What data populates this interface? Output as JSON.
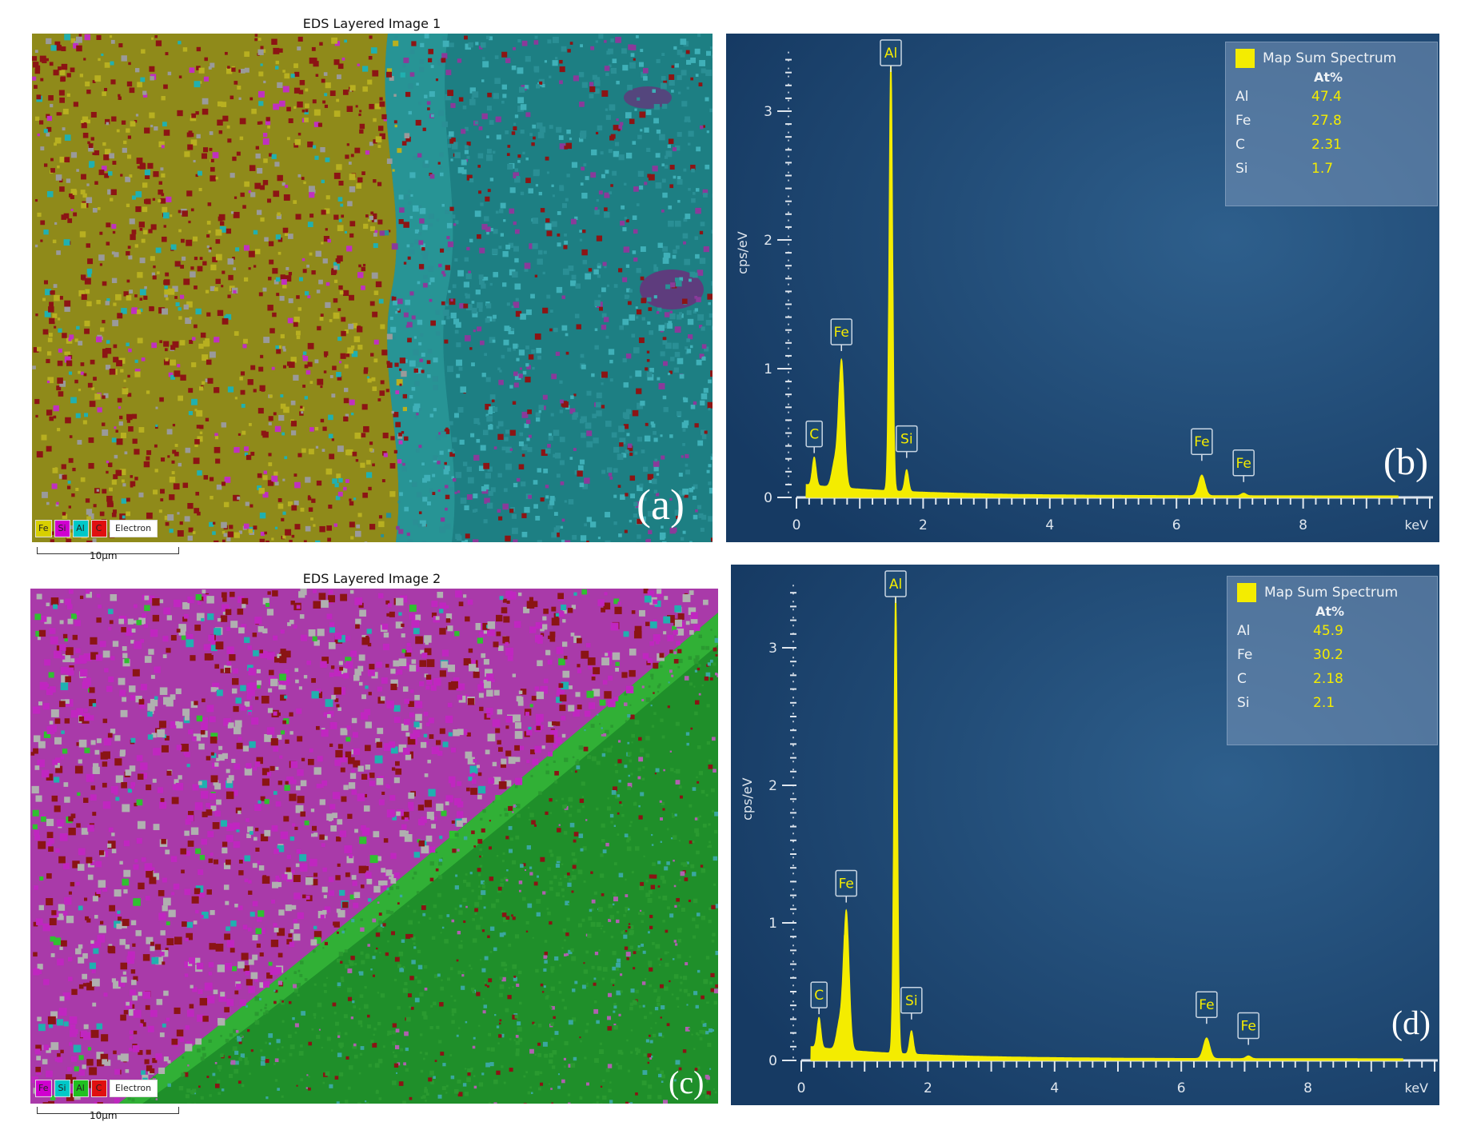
{
  "maps": [
    {
      "title": "EDS Layered Image 1",
      "panel_letter": "(a)",
      "legend": [
        {
          "label": "Fe",
          "color": "#d8d000"
        },
        {
          "label": "Si",
          "color": "#d000d0"
        },
        {
          "label": "Al",
          "color": "#00c8c8"
        },
        {
          "label": "C",
          "color": "#e01010"
        },
        {
          "label": "Electron",
          "color": "#ffffff"
        }
      ],
      "scale_label": "10µm"
    },
    {
      "title": "EDS Layered Image 2",
      "panel_letter": "(c)",
      "legend": [
        {
          "label": "Fe",
          "color": "#d000d0"
        },
        {
          "label": "Si",
          "color": "#00c8c8"
        },
        {
          "label": "Al",
          "color": "#20c020"
        },
        {
          "label": "C",
          "color": "#e01010"
        },
        {
          "label": "Electron",
          "color": "#ffffff"
        }
      ],
      "scale_label": "10µm"
    }
  ],
  "chart_data": [
    {
      "type": "area",
      "panel_letter": "(b)",
      "xlabel": "keV",
      "ylabel": "cps/eV",
      "xlim": [
        0,
        10
      ],
      "ylim": [
        0,
        3.4
      ],
      "x_ticks": [
        0,
        2,
        4,
        6,
        8
      ],
      "y_ticks": [
        0,
        1,
        2,
        3
      ],
      "series": [
        {
          "name": "Map Sum Spectrum",
          "color": "#f4ec00"
        }
      ],
      "peaks": [
        {
          "label": "C",
          "x": 0.28,
          "y": 0.22
        },
        {
          "label": "Fe",
          "x": 0.71,
          "y": 1.0
        },
        {
          "label": "Al",
          "x": 1.49,
          "y": 3.4
        },
        {
          "label": "Si",
          "x": 1.74,
          "y": 0.17
        },
        {
          "label": "Fe",
          "x": 6.4,
          "y": 0.16
        },
        {
          "label": "Fe",
          "x": 7.06,
          "y": 0.02
        }
      ],
      "table": {
        "unit": "At%",
        "rows": [
          {
            "element": "Al",
            "value": "47.4"
          },
          {
            "element": "Fe",
            "value": "27.8"
          },
          {
            "element": "C",
            "value": "2.31"
          },
          {
            "element": "Si",
            "value": "1.7"
          }
        ]
      }
    },
    {
      "type": "area",
      "panel_letter": "(d)",
      "xlabel": "keV",
      "ylabel": "cps/eV",
      "xlim": [
        0,
        10
      ],
      "ylim": [
        0,
        3.4
      ],
      "x_ticks": [
        0,
        2,
        4,
        6,
        8
      ],
      "y_ticks": [
        0,
        1,
        2,
        3
      ],
      "series": [
        {
          "name": "Map Sum Spectrum",
          "color": "#f4ec00"
        }
      ],
      "peaks": [
        {
          "label": "C",
          "x": 0.28,
          "y": 0.22
        },
        {
          "label": "Fe",
          "x": 0.71,
          "y": 1.02
        },
        {
          "label": "Al",
          "x": 1.49,
          "y": 3.4
        },
        {
          "label": "Si",
          "x": 1.74,
          "y": 0.17
        },
        {
          "label": "Fe",
          "x": 6.4,
          "y": 0.15
        },
        {
          "label": "Fe",
          "x": 7.06,
          "y": 0.02
        }
      ],
      "table": {
        "unit": "At%",
        "rows": [
          {
            "element": "Al",
            "value": "45.9"
          },
          {
            "element": "Fe",
            "value": "30.2"
          },
          {
            "element": "C",
            "value": "2.18"
          },
          {
            "element": "Si",
            "value": "2.1"
          }
        ]
      }
    }
  ]
}
